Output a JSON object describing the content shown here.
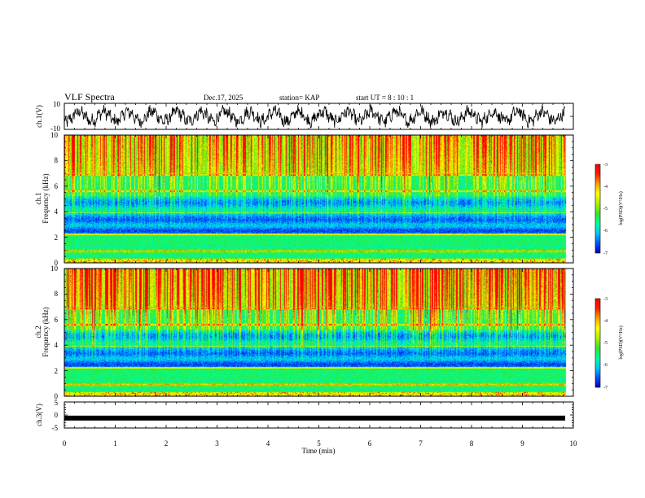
{
  "header": {
    "title": "VLF Spectra",
    "date": "Dec.17, 2025",
    "station": "station= KAP",
    "start_ut": "start  UT =  8 : 10 : 1"
  },
  "colors": {
    "scale": [
      "#0000b4",
      "#0050ff",
      "#00c8ff",
      "#00ff96",
      "#32e632",
      "#b4f000",
      "#ffff00",
      "#ffa000",
      "#ff1e00",
      "#ff0000"
    ]
  },
  "chart_data": [
    {
      "id": "ch1_waveform",
      "type": "line",
      "ylabel": "ch.1(V)",
      "ylim": [
        -10,
        10
      ],
      "yticks": [
        "10",
        "-10"
      ],
      "xlim": [
        0,
        10
      ]
    },
    {
      "id": "ch1_spectrogram",
      "type": "heatmap",
      "ylabel_channel": "ch.1",
      "ylabel": "Frequency  (kHz)",
      "ylim": [
        0,
        10
      ],
      "yticks": [
        "0",
        "2",
        "4",
        "6",
        "8",
        "10"
      ],
      "xlim": [
        0,
        10
      ],
      "colorbar": {
        "label": "log(PSD)(V²/Hz)",
        "ticks": [
          "-3",
          "-4",
          "-5",
          "-6",
          "-7"
        ],
        "range": [
          -7,
          -3
        ]
      }
    },
    {
      "id": "ch2_spectrogram",
      "type": "heatmap",
      "ylabel_channel": "ch.2",
      "ylabel": "Frequency  (kHz)",
      "ylim": [
        0,
        10
      ],
      "yticks": [
        "0",
        "2",
        "4",
        "6",
        "8",
        "10"
      ],
      "xlim": [
        0,
        10
      ],
      "colorbar": {
        "label": "log(PSD)(V²/Hz)",
        "ticks": [
          "-3",
          "-4",
          "-5",
          "-6",
          "-7"
        ],
        "range": [
          -7,
          -3
        ]
      }
    },
    {
      "id": "ch3_waveform",
      "type": "line",
      "ylabel": "ch.3(V)",
      "ylim": [
        -5,
        5
      ],
      "yticks": [
        "5",
        "0",
        "-5"
      ],
      "xlim": [
        0,
        10
      ],
      "level": -1.2,
      "xlabel": "Time  (min)",
      "xticks": [
        "0",
        "1",
        "2",
        "3",
        "4",
        "5",
        "6",
        "7",
        "8",
        "9",
        "10"
      ]
    }
  ]
}
